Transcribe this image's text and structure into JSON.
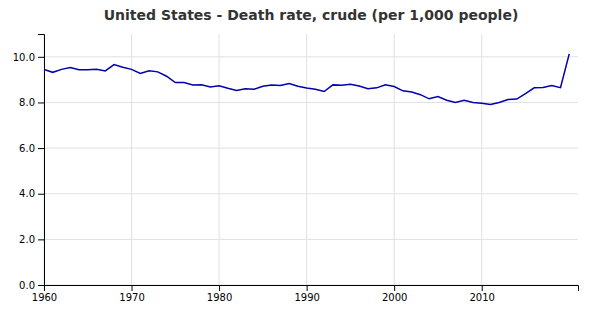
{
  "chart_data": {
    "type": "line",
    "title": "United States - Death rate, crude (per 1,000 people)",
    "x": [
      1960,
      1961,
      1962,
      1963,
      1964,
      1965,
      1966,
      1967,
      1968,
      1969,
      1970,
      1971,
      1972,
      1973,
      1974,
      1975,
      1976,
      1977,
      1978,
      1979,
      1980,
      1981,
      1982,
      1983,
      1984,
      1985,
      1986,
      1987,
      1988,
      1989,
      1990,
      1991,
      1992,
      1993,
      1994,
      1995,
      1996,
      1997,
      1998,
      1999,
      2000,
      2001,
      2002,
      2003,
      2004,
      2005,
      2006,
      2007,
      2008,
      2009,
      2010,
      2011,
      2012,
      2013,
      2014,
      2015,
      2016,
      2017,
      2018,
      2019,
      2020
    ],
    "values": [
      9.45,
      9.32,
      9.45,
      9.53,
      9.43,
      9.43,
      9.45,
      9.38,
      9.66,
      9.54,
      9.45,
      9.27,
      9.39,
      9.34,
      9.15,
      8.87,
      8.87,
      8.77,
      8.78,
      8.68,
      8.73,
      8.62,
      8.52,
      8.6,
      8.58,
      8.71,
      8.76,
      8.74,
      8.83,
      8.71,
      8.63,
      8.58,
      8.48,
      8.77,
      8.75,
      8.8,
      8.72,
      8.6,
      8.64,
      8.77,
      8.7,
      8.51,
      8.46,
      8.34,
      8.16,
      8.26,
      8.1,
      8.0,
      8.1,
      8.0,
      7.97,
      7.91,
      8.0,
      8.13,
      8.15,
      8.39,
      8.64,
      8.66,
      8.74,
      8.65,
      10.13
    ],
    "color": "#0000AA",
    "xlim": [
      1960,
      2021
    ],
    "xticks": [
      1960,
      1970,
      1980,
      1990,
      2000,
      2010
    ],
    "ylim": [
      0.0,
      11.0
    ],
    "yticks": [
      {
        "value": 0.0,
        "label": "0.0"
      },
      {
        "value": 2.0,
        "label": "2.0"
      },
      {
        "value": 4.0,
        "label": "4.0"
      },
      {
        "value": 6.0,
        "label": "6.0"
      },
      {
        "value": 8.0,
        "label": "8.0"
      },
      {
        "value": 10.0,
        "label": "10.0"
      }
    ],
    "grid": true
  }
}
